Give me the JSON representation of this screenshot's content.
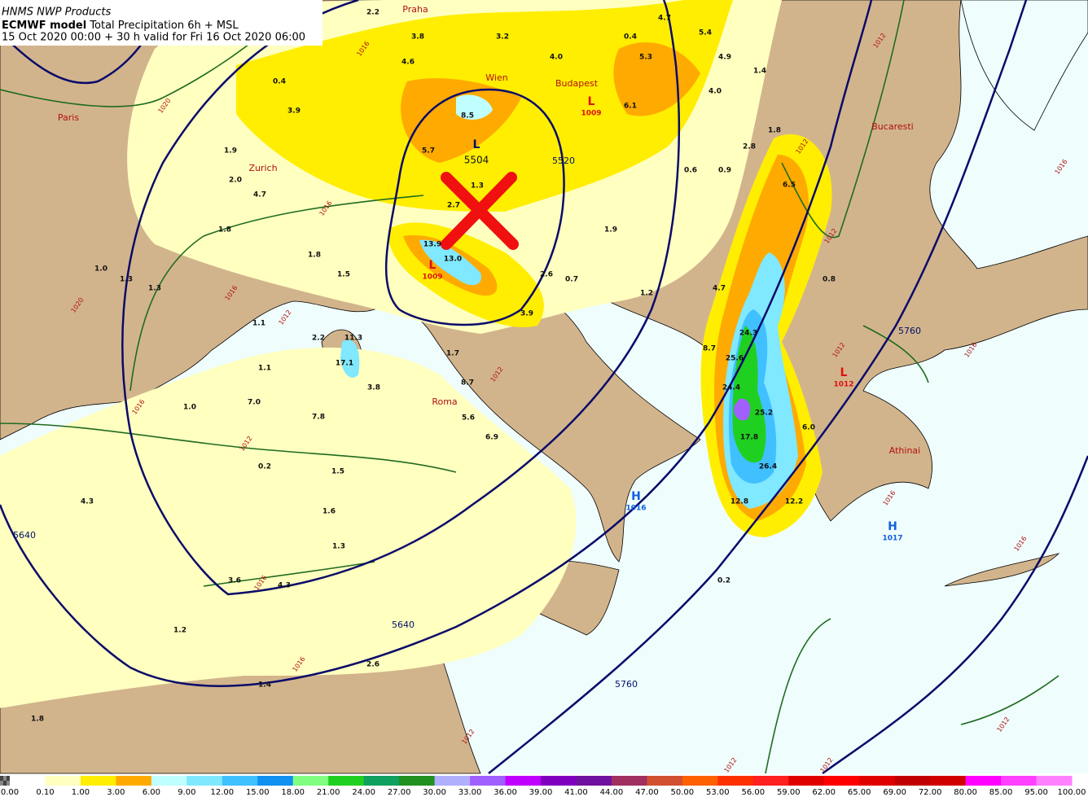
{
  "header": {
    "source": "HNMS NWP Products",
    "model": "ECMWF model",
    "product": "Total Precipitation 6h + MSL",
    "valid": "15 Oct 2020 00:00 + 30 h valid for Fri 16 Oct 2020 06:00"
  },
  "cities": [
    "Praha",
    "Wien",
    "Budapest",
    "Paris",
    "Zurich",
    "Bucaresti",
    "Roma",
    "Athinai"
  ],
  "precipitation_labels": [
    "2.2",
    "3.8",
    "3.2",
    "4.6",
    "4.0",
    "5.3",
    "5.4",
    "4.9",
    "0.4",
    "4.7",
    "0.4",
    "3.9",
    "8.5",
    "6.1",
    "4.0",
    "1.4",
    "1.9",
    "5.7",
    "1.8",
    "2.8",
    "0.6",
    "0.9",
    "2.0",
    "4.7",
    "1.3",
    "2.7",
    "6.5",
    "1.8",
    "1.9",
    "1.8",
    "13.9",
    "13.0",
    "1.0",
    "1.3",
    "1.3",
    "1.5",
    "2.6",
    "0.7",
    "0.8",
    "4.7",
    "1.2",
    "3.9",
    "1.1",
    "2.2",
    "11.3",
    "24.3",
    "8.7",
    "25.6",
    "1.7",
    "17.1",
    "1.1",
    "3.8",
    "8.7",
    "24.4",
    "7.0",
    "1.0",
    "25.2",
    "7.8",
    "5.6",
    "6.0",
    "17.8",
    "6.9",
    "0.2",
    "26.4",
    "1.5",
    "4.3",
    "12.8",
    "12.2",
    "1.6",
    "1.3",
    "3.6",
    "4.3",
    "0.2",
    "1.2",
    "2.6",
    "1.4",
    "1.8"
  ],
  "pressure_centers": [
    {
      "symbol": "L",
      "value": "1009"
    },
    {
      "symbol": "L",
      "value": "1009"
    },
    {
      "symbol": "L",
      "value": "1012"
    },
    {
      "symbol": "H",
      "value": "1016"
    },
    {
      "symbol": "H",
      "value": "1017"
    },
    {
      "symbol": "L",
      "value": "5504"
    }
  ],
  "geopotential_labels": [
    "5520",
    "5640",
    "5640",
    "5760",
    "5760"
  ],
  "isobar_labels": [
    "1016",
    "1020",
    "1016",
    "1016",
    "1020",
    "1012",
    "1012",
    "1012",
    "1016",
    "1016",
    "1016",
    "1012",
    "1012",
    "1012",
    "1012",
    "1012",
    "1012",
    "1016",
    "1012",
    "1016",
    "1016",
    "1016",
    "1012"
  ],
  "legend": {
    "labels": [
      "0.00",
      "0.10",
      "1.00",
      "3.00",
      "6.00",
      "9.00",
      "12.00",
      "15.00",
      "18.00",
      "21.00",
      "24.00",
      "27.00",
      "30.00",
      "33.00",
      "36.00",
      "39.00",
      "41.00",
      "44.00",
      "47.00",
      "50.00",
      "53.00",
      "56.00",
      "59.00",
      "62.00",
      "65.00",
      "69.00",
      "72.00",
      "80.00",
      "85.00",
      "95.00",
      "100.00"
    ],
    "colors": [
      "#ffffff",
      "#ffffc0",
      "#ffee00",
      "#ffaa00",
      "#c0ffff",
      "#80e8ff",
      "#40c0ff",
      "#1090f0",
      "#80ff80",
      "#20d020",
      "#10a060",
      "#209020",
      "#b0b0ff",
      "#a060ff",
      "#c000ff",
      "#8000c0",
      "#7010a0",
      "#a03060",
      "#d05030",
      "#ff6000",
      "#ff3000",
      "#ff2020",
      "#e00000",
      "#ff0000",
      "#e00000",
      "#c00000",
      "#d00000",
      "#ff00ff",
      "#ff40ff",
      "#ff80ff"
    ]
  }
}
